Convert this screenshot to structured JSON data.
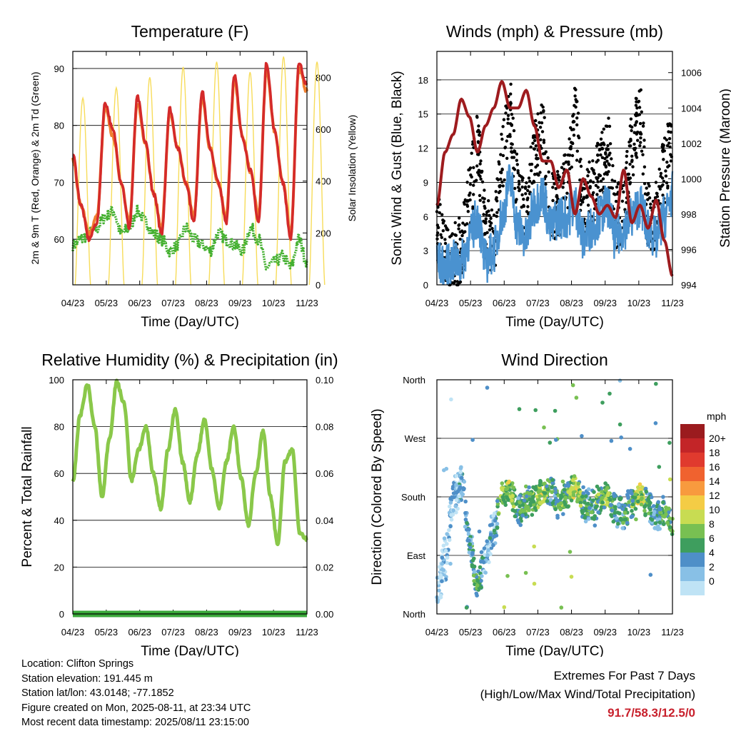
{
  "chart_data": [
    {
      "type": "line",
      "title": "Temperature (F)",
      "xlabel": "Time (Day/UTC)",
      "ylabel": "2m & 9m T (Red, Orange) & 2m Td (Green)",
      "y2label": "Solar Insolation (Yellow)",
      "x_ticks": [
        "04/23",
        "05/23",
        "06/23",
        "07/23",
        "08/23",
        "09/23",
        "10/23",
        "11/23"
      ],
      "ylim": [
        52,
        93
      ],
      "y_ticks": [
        60,
        70,
        80,
        90
      ],
      "y2lim": [
        0,
        900
      ],
      "y2_ticks": [
        0,
        200,
        400,
        600,
        800
      ],
      "grid": "horizontal",
      "colors": {
        "t2m": "#d42a2a",
        "t9m": "#f08030",
        "td": "#44b030",
        "solar": "#f7dc5a"
      },
      "series": [
        {
          "key": "t2m",
          "values": [
            75,
            66,
            60,
            63,
            84,
            79,
            70,
            62,
            85,
            77,
            68,
            61,
            83,
            76,
            70,
            63,
            86,
            76,
            70,
            63,
            89,
            78,
            72,
            63,
            91,
            79,
            70,
            60,
            91,
            87
          ]
        },
        {
          "key": "t9m",
          "values": [
            74,
            66,
            61,
            64,
            83,
            78,
            70,
            63,
            84,
            77,
            68,
            62,
            82,
            76,
            70,
            64,
            85,
            76,
            70,
            64,
            88,
            78,
            72,
            64,
            90,
            79,
            70,
            61,
            90,
            86
          ]
        },
        {
          "key": "td",
          "values": [
            59,
            60,
            61,
            62,
            64,
            65,
            61,
            62,
            65,
            63,
            61,
            60,
            58,
            59,
            62,
            60,
            59,
            58,
            61,
            60,
            59,
            58,
            62,
            60,
            55,
            56,
            57,
            55,
            60,
            56
          ]
        },
        {
          "key": "solar",
          "daily_max": [
            720,
            760,
            800,
            840,
            860,
            820,
            880,
            860
          ]
        }
      ]
    },
    {
      "type": "line",
      "title": "Winds (mph) & Pressure (mb)",
      "xlabel": "Time (Day/UTC)",
      "ylabel": "Sonic Wind & Gust (Blue, Black)",
      "y2label": "Station Pressure (Maroon)",
      "x_ticks": [
        "04/23",
        "05/23",
        "06/23",
        "07/23",
        "08/23",
        "09/23",
        "10/23",
        "11/23"
      ],
      "ylim": [
        0,
        20.5
      ],
      "y_ticks": [
        0,
        3,
        6,
        9,
        12,
        15,
        18
      ],
      "y2lim": [
        994,
        1007.2
      ],
      "y2_ticks": [
        994,
        996,
        998,
        1000,
        1002,
        1004,
        1006
      ],
      "grid": "horizontal",
      "colors": {
        "wind": "#4a92d0",
        "gust": "#000000",
        "pressure": "#9e1b1e"
      },
      "series": [
        {
          "key": "wind",
          "values": [
            2,
            1.5,
            2,
            2,
            4,
            6,
            2,
            3,
            6,
            9,
            5,
            4,
            7,
            8,
            5,
            6,
            6,
            7,
            4,
            5,
            6,
            7,
            4,
            5,
            6,
            7,
            5,
            4,
            6,
            8
          ]
        },
        {
          "key": "gust",
          "values": [
            5,
            3,
            2.5,
            3,
            8,
            12,
            5,
            4,
            11,
            15,
            8,
            6,
            12,
            13,
            7,
            7,
            9,
            15,
            7,
            8,
            10,
            12,
            6,
            7,
            12,
            15,
            6,
            6,
            10,
            13
          ]
        },
        {
          "key": "pressure",
          "values": [
            998.5,
            1001.5,
            1002.5,
            1004.5,
            1003.5,
            1001.5,
            1003,
            1004,
            1005.5,
            1004,
            1004,
            1005,
            1003,
            1001,
            1001,
            999.5,
            1000.5,
            998,
            1000,
            999,
            998,
            998.5,
            997.8,
            1000.5,
            997.5,
            998.5,
            997.2,
            998.8,
            996.5,
            994.5
          ]
        }
      ]
    },
    {
      "type": "line",
      "title": "Relative Humidity (%) & Precipitation (in)",
      "xlabel": "Time (Day/UTC)",
      "ylabel": "Percent & Total Rainfall",
      "x_ticks": [
        "04/23",
        "05/23",
        "06/23",
        "07/23",
        "08/23",
        "09/23",
        "10/23",
        "11/23"
      ],
      "ylim": [
        0,
        100
      ],
      "y_ticks": [
        0,
        20,
        40,
        60,
        80,
        100
      ],
      "y2lim": [
        0,
        0.1
      ],
      "y2_ticks": [
        "0.00",
        "0.02",
        "0.04",
        "0.06",
        "0.08",
        "0.10"
      ],
      "grid": "horizontal",
      "colors": {
        "rh": "#8ac84a",
        "rain": "#3aa83a"
      },
      "series": [
        {
          "key": "rh",
          "values": [
            56,
            85,
            98,
            80,
            50,
            75,
            99,
            90,
            57,
            70,
            80,
            60,
            45,
            70,
            87,
            65,
            48,
            68,
            83,
            62,
            45,
            65,
            80,
            58,
            38,
            60,
            78,
            50,
            30,
            65,
            70,
            35,
            32
          ]
        },
        {
          "key": "rain",
          "values": [
            0,
            0
          ]
        }
      ]
    },
    {
      "type": "scatter",
      "title": "Wind Direction",
      "xlabel": "Time (Day/UTC)",
      "ylabel": "Direction (Colored By Speed)",
      "x_ticks": [
        "04/23",
        "05/23",
        "06/23",
        "07/23",
        "08/23",
        "09/23",
        "10/23",
        "11/23"
      ],
      "y_ticks": [
        "North",
        "East",
        "South",
        "West",
        "North"
      ],
      "grid": "horizontal",
      "colorbar": {
        "title": "mph",
        "labels": [
          "20+",
          "18",
          "16",
          "14",
          "12",
          "10",
          "8",
          "6",
          "4",
          "2",
          "0"
        ],
        "colors": [
          "#9b1b1e",
          "#c32528",
          "#e03a2e",
          "#f0622f",
          "#f89a3e",
          "#f4cc45",
          "#c8dc52",
          "#78c052",
          "#3e9e5e",
          "#4e8fc8",
          "#88c0e6",
          "#bfe3f5"
        ]
      },
      "series": [
        {
          "name": "direction_deg",
          "values": [
            30,
            80,
            180,
            200,
            110,
            40,
            90,
            130,
            185,
            190,
            160,
            170,
            175,
            185,
            190,
            170,
            180,
            195,
            170,
            165,
            175,
            180,
            160,
            155,
            170,
            185,
            165,
            150,
            160,
            140
          ]
        },
        {
          "name": "speed_mph",
          "values": [
            1,
            2,
            3,
            4,
            5,
            7,
            3,
            4,
            9,
            10,
            6,
            7,
            9,
            10,
            6,
            7,
            8,
            11,
            7,
            6,
            8,
            9,
            5,
            6,
            8,
            11,
            6,
            5,
            7,
            8
          ]
        }
      ]
    }
  ],
  "footer": {
    "location": "Location: Clifton Springs",
    "elevation": "Station elevation: 191.445 m",
    "latlon": "Station lat/lon: 43.0148; -77.1852",
    "created": "Figure created on Mon, 2025-08-11, at 23:34 UTC",
    "recent": "Most recent data timestamp: 2025/08/11 23:15:00"
  },
  "extremes": {
    "heading": "Extremes For Past 7 Days",
    "subheading": "(High/Low/Max Wind/Total Precipitation)",
    "value": "91.7/58.3/12.5/0"
  }
}
